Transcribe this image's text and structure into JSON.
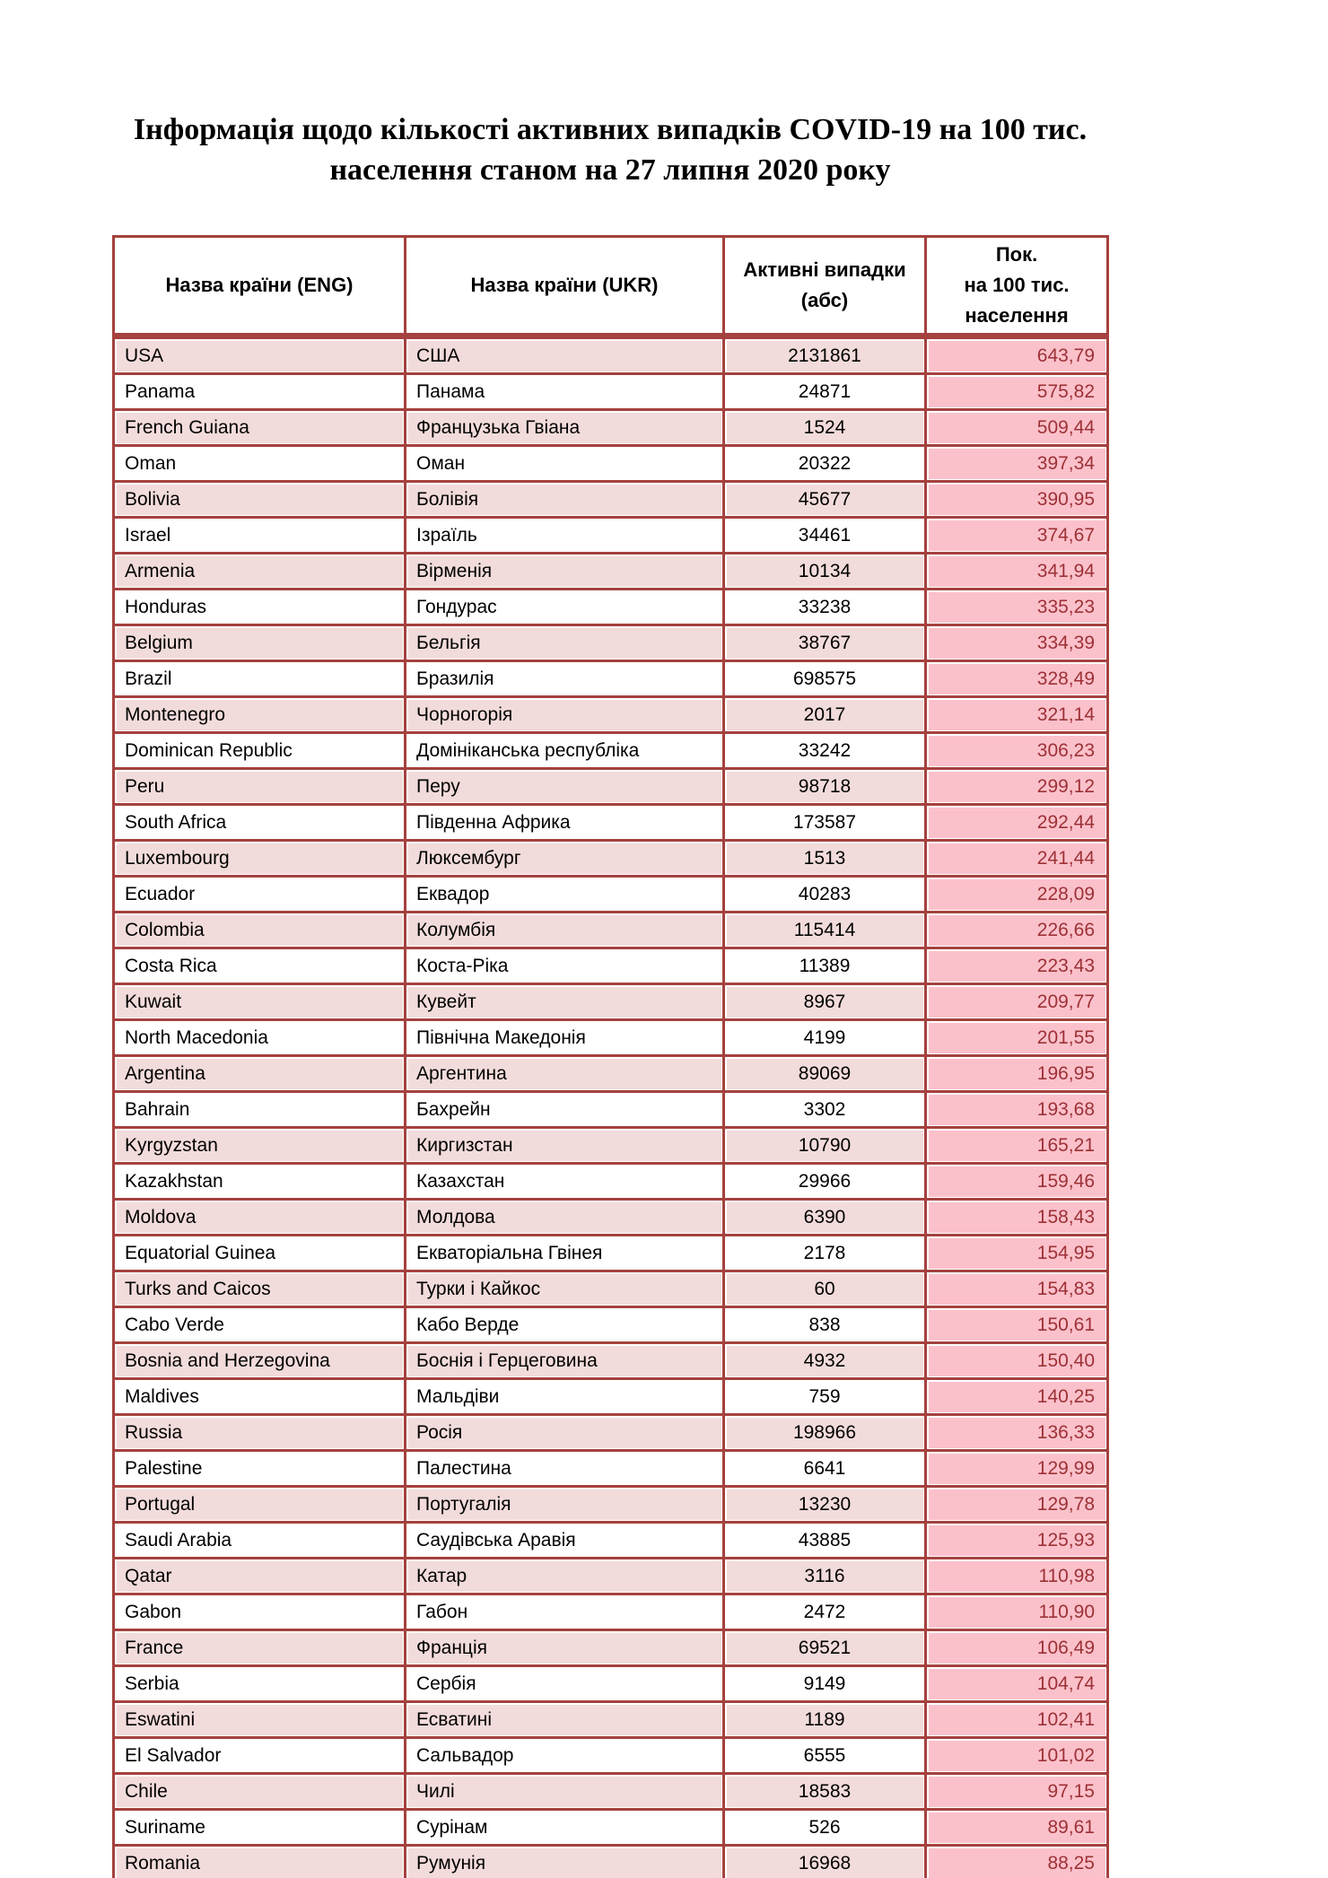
{
  "page": {
    "title": "Інформація щодо кількості активних випадків COVID-19 на 100 тис.\nнаселення станом на 27 липня 2020 року"
  },
  "colors": {
    "border": "#a5413e",
    "band": "#f2dcdb",
    "rate_bg": "#fbc1cb",
    "rate_text": "#9d3136"
  },
  "table": {
    "headers": [
      "Назва країни (ENG)",
      "Назва країни (UKR)",
      "Активні випадки\n(абс)",
      "Пок.\nна 100 тис.\nнаселення"
    ],
    "rows": [
      {
        "eng": "USA",
        "ukr": "США",
        "cases": "2131861",
        "per100k": "643,79"
      },
      {
        "eng": "Panama",
        "ukr": "Панама",
        "cases": "24871",
        "per100k": "575,82"
      },
      {
        "eng": "French Guiana",
        "ukr": "Французька Гвіана",
        "cases": "1524",
        "per100k": "509,44"
      },
      {
        "eng": "Oman",
        "ukr": "Оман",
        "cases": "20322",
        "per100k": "397,34"
      },
      {
        "eng": "Bolivia",
        "ukr": "Болівія",
        "cases": "45677",
        "per100k": "390,95"
      },
      {
        "eng": "Israel",
        "ukr": "Ізраїль",
        "cases": "34461",
        "per100k": "374,67"
      },
      {
        "eng": "Armenia",
        "ukr": "Вірменія",
        "cases": "10134",
        "per100k": "341,94"
      },
      {
        "eng": "Honduras",
        "ukr": "Гондурас",
        "cases": "33238",
        "per100k": "335,23"
      },
      {
        "eng": "Belgium",
        "ukr": "Бельгія",
        "cases": "38767",
        "per100k": "334,39"
      },
      {
        "eng": "Brazil",
        "ukr": "Бразилія",
        "cases": "698575",
        "per100k": "328,49"
      },
      {
        "eng": "Montenegro",
        "ukr": "Чорногорія",
        "cases": "2017",
        "per100k": "321,14"
      },
      {
        "eng": "Dominican Republic",
        "ukr": "Домініканська республіка",
        "cases": "33242",
        "per100k": "306,23"
      },
      {
        "eng": "Peru",
        "ukr": "Перу",
        "cases": "98718",
        "per100k": "299,12"
      },
      {
        "eng": "South Africa",
        "ukr": "Південна Африка",
        "cases": "173587",
        "per100k": "292,44"
      },
      {
        "eng": "Luxembourg",
        "ukr": "Люксембург",
        "cases": "1513",
        "per100k": "241,44"
      },
      {
        "eng": "Ecuador",
        "ukr": "Еквадор",
        "cases": "40283",
        "per100k": "228,09"
      },
      {
        "eng": "Colombia",
        "ukr": "Колумбія",
        "cases": "115414",
        "per100k": "226,66"
      },
      {
        "eng": "Costa Rica",
        "ukr": "Коста-Ріка",
        "cases": "11389",
        "per100k": "223,43"
      },
      {
        "eng": "Kuwait",
        "ukr": "Кувейт",
        "cases": "8967",
        "per100k": "209,77"
      },
      {
        "eng": "North Macedonia",
        "ukr": "Північна Македонія",
        "cases": "4199",
        "per100k": "201,55"
      },
      {
        "eng": "Argentina",
        "ukr": "Аргентина",
        "cases": "89069",
        "per100k": "196,95"
      },
      {
        "eng": "Bahrain",
        "ukr": "Бахрейн",
        "cases": "3302",
        "per100k": "193,68"
      },
      {
        "eng": "Kyrgyzstan",
        "ukr": "Киргизстан",
        "cases": "10790",
        "per100k": "165,21"
      },
      {
        "eng": "Kazakhstan",
        "ukr": "Казахстан",
        "cases": "29966",
        "per100k": "159,46"
      },
      {
        "eng": "Moldova",
        "ukr": "Молдова",
        "cases": "6390",
        "per100k": "158,43"
      },
      {
        "eng": "Equatorial Guinea",
        "ukr": "Екваторіальна Гвінея",
        "cases": "2178",
        "per100k": "154,95"
      },
      {
        "eng": "Turks and Caicos",
        "ukr": "Турки і Кайкос",
        "cases": "60",
        "per100k": "154,83"
      },
      {
        "eng": "Cabo Verde",
        "ukr": "Кабо Верде",
        "cases": "838",
        "per100k": "150,61"
      },
      {
        "eng": "Bosnia and Herzegovina",
        "ukr": "Боснія і Герцеговина",
        "cases": "4932",
        "per100k": "150,40"
      },
      {
        "eng": "Maldives",
        "ukr": "Мальдіви",
        "cases": "759",
        "per100k": "140,25"
      },
      {
        "eng": "Russia",
        "ukr": "Росія",
        "cases": "198966",
        "per100k": "136,33"
      },
      {
        "eng": "Palestine",
        "ukr": "Палестина",
        "cases": "6641",
        "per100k": "129,99"
      },
      {
        "eng": "Portugal",
        "ukr": "Португалія",
        "cases": "13230",
        "per100k": "129,78"
      },
      {
        "eng": "Saudi Arabia",
        "ukr": "Саудівська Аравія",
        "cases": "43885",
        "per100k": "125,93"
      },
      {
        "eng": "Qatar",
        "ukr": "Катар",
        "cases": "3116",
        "per100k": "110,98"
      },
      {
        "eng": "Gabon",
        "ukr": "Габон",
        "cases": "2472",
        "per100k": "110,90"
      },
      {
        "eng": "France",
        "ukr": "Франція",
        "cases": "69521",
        "per100k": "106,49"
      },
      {
        "eng": "Serbia",
        "ukr": "Сербія",
        "cases": "9149",
        "per100k": "104,74"
      },
      {
        "eng": "Eswatini",
        "ukr": "Есватині",
        "cases": "1189",
        "per100k": "102,41"
      },
      {
        "eng": "El Salvador",
        "ukr": "Сальвадор",
        "cases": "6555",
        "per100k": "101,02"
      },
      {
        "eng": "Chile",
        "ukr": "Чилі",
        "cases": "18583",
        "per100k": "97,15"
      },
      {
        "eng": "Suriname",
        "ukr": "Сурінам",
        "cases": "526",
        "per100k": "89,61"
      },
      {
        "eng": "Romania",
        "ukr": "Румунія",
        "cases": "16968",
        "per100k": "88,25"
      }
    ]
  }
}
